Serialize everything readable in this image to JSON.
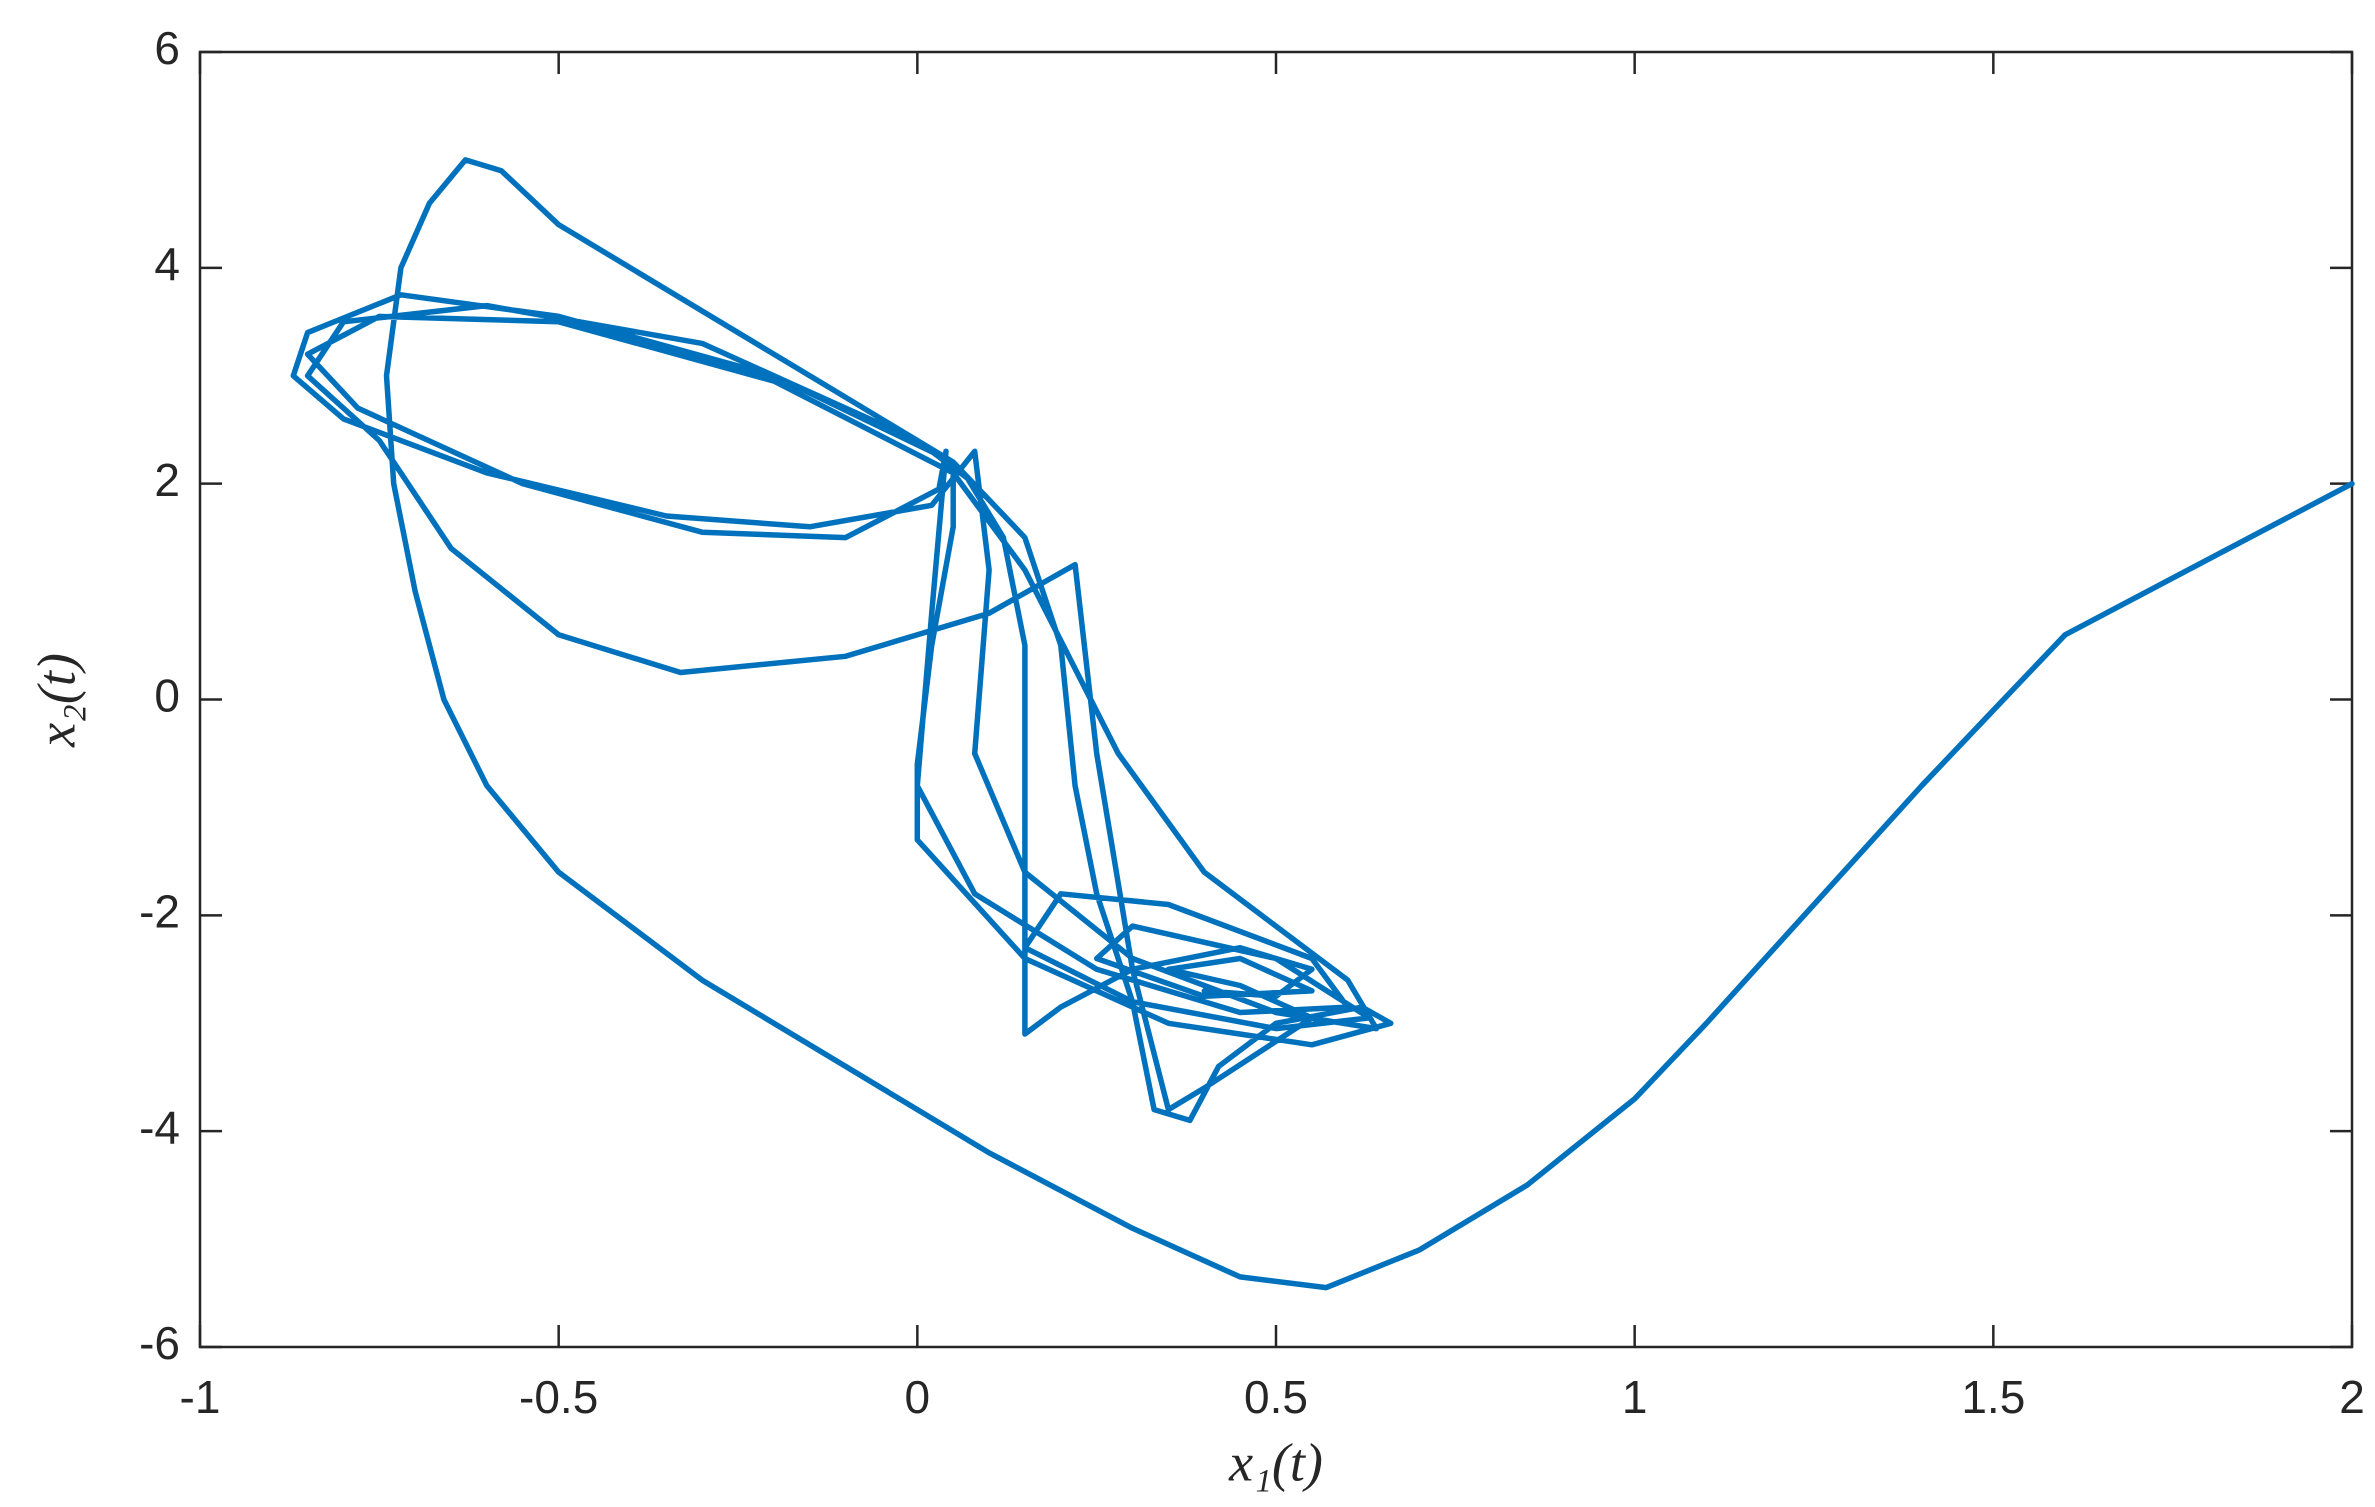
{
  "chart_data": {
    "type": "line",
    "xlabel": "x₁(t)",
    "ylabel": "x₂(t)",
    "xlim": [
      -1,
      2
    ],
    "xticks": [
      -1,
      -0.5,
      0,
      0.5,
      1,
      1.5,
      2
    ],
    "ylim": [
      -6,
      6
    ],
    "yticks": [
      -6,
      -4,
      -2,
      0,
      2,
      4,
      6
    ],
    "grid": false,
    "series": [
      {
        "color": "#0072bd",
        "x": [
          2,
          1.8,
          1.6,
          1.5,
          1.4,
          1.25,
          1.1,
          1.0,
          0.85,
          0.7,
          0.57,
          0.45,
          0.3,
          0.1,
          -0.1,
          -0.3,
          -0.5,
          -0.6,
          -0.66,
          -0.7,
          -0.73,
          -0.74,
          -0.72,
          -0.68,
          -0.63,
          -0.58,
          -0.5,
          -0.3,
          -0.1,
          0.05,
          0.15,
          0.2,
          0.22,
          0.25,
          0.3,
          0.33,
          0.38,
          0.42,
          0.5,
          0.62,
          0.66,
          0.55,
          0.35,
          0.15,
          0.0,
          0.0,
          0.02,
          0.05,
          0.05,
          -0.2,
          -0.5,
          -0.72,
          -0.85,
          -0.87,
          -0.8,
          -0.6,
          -0.35,
          -0.15,
          0.02,
          0.08,
          0.1,
          0.08,
          0.15,
          0.3,
          0.5,
          0.64,
          0.6,
          0.4,
          0.28,
          0.15,
          0.05,
          -0.2,
          -0.5,
          -0.75,
          -0.85,
          -0.78,
          -0.55,
          -0.3,
          -0.1,
          0.03,
          0.04,
          0.02,
          0.0,
          0.08,
          0.25,
          0.45,
          0.6,
          0.55,
          0.35,
          0.2,
          0.15,
          0.3,
          0.5,
          0.63,
          0.5,
          0.3,
          0.25,
          0.4,
          0.55,
          0.45,
          0.35,
          0.45,
          0.55,
          0.4,
          0.35,
          0.3,
          0.25,
          0.22,
          0.1,
          -0.1,
          -0.33,
          -0.5,
          -0.65,
          -0.75,
          -0.85,
          -0.8,
          -0.6,
          -0.3,
          0.0,
          0.07,
          0.12,
          0.15,
          0.15,
          0.15,
          0.2,
          0.3,
          0.45,
          0.55,
          0.5,
          0.4
        ],
        "y": [
          2,
          1.3,
          0.6,
          -0.1,
          -0.8,
          -1.9,
          -3.0,
          -3.7,
          -4.5,
          -5.1,
          -5.45,
          -5.35,
          -4.9,
          -4.2,
          -3.4,
          -2.6,
          -1.6,
          -0.8,
          0,
          1,
          2,
          3,
          4,
          4.6,
          5,
          4.9,
          4.4,
          3.6,
          2.8,
          2.2,
          1.5,
          0.5,
          -0.8,
          -1.8,
          -2.8,
          -3.8,
          -3.9,
          -3.4,
          -3.0,
          -2.85,
          -3.0,
          -3.2,
          -3.0,
          -2.4,
          -1.3,
          -0.6,
          0.5,
          1.6,
          2.2,
          3.0,
          3.55,
          3.75,
          3.4,
          3.0,
          2.6,
          2.1,
          1.7,
          1.6,
          1.8,
          2.3,
          1.2,
          -0.5,
          -1.6,
          -2.4,
          -2.9,
          -3.05,
          -2.6,
          -1.6,
          -0.5,
          1.2,
          2.1,
          2.95,
          3.5,
          3.55,
          3.2,
          2.7,
          2.0,
          1.55,
          1.5,
          1.95,
          2.3,
          0.8,
          -0.8,
          -1.8,
          -2.5,
          -2.9,
          -2.85,
          -2.4,
          -1.9,
          -1.8,
          -2.3,
          -2.8,
          -3.05,
          -2.95,
          -2.4,
          -2.1,
          -2.4,
          -2.75,
          -2.7,
          -2.4,
          -2.5,
          -2.65,
          -2.95,
          -3.6,
          -3.8,
          -2.5,
          -0.5,
          1.25,
          0.8,
          0.4,
          0.25,
          0.6,
          1.4,
          2.4,
          3.0,
          3.5,
          3.65,
          3.3,
          2.4,
          2.05,
          1.5,
          0.5,
          -1.0,
          -3.1,
          -2.85,
          -2.5,
          -2.3,
          -2.5,
          -2.75,
          -2.7
        ]
      }
    ]
  }
}
